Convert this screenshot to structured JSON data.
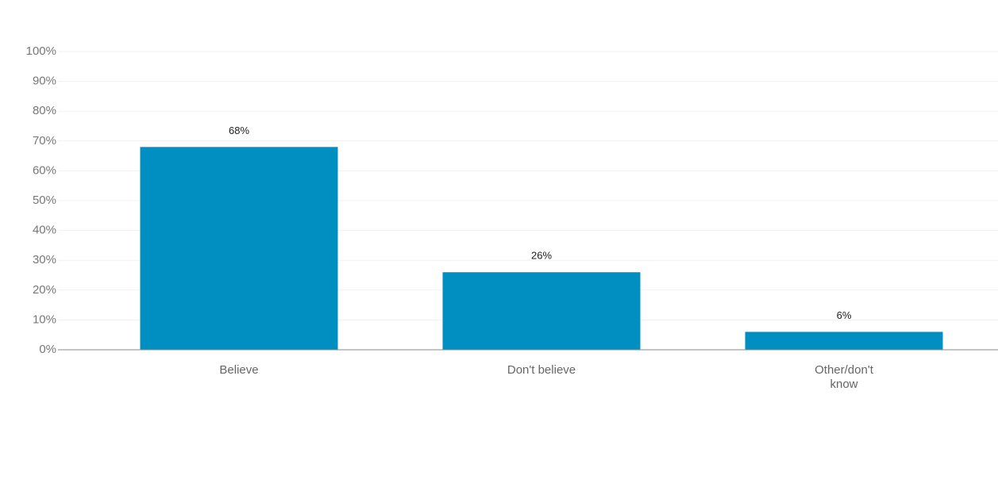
{
  "chart_data": {
    "type": "bar",
    "categories": [
      "Believe",
      "Don't believe",
      "Other/don't know"
    ],
    "values": [
      68,
      26,
      6
    ],
    "value_labels": [
      "68%",
      "26%",
      "6%"
    ],
    "color": "#008fc0",
    "ylim": [
      0,
      100
    ],
    "yticks": [
      {
        "value": 0,
        "label": "0%"
      },
      {
        "value": 10,
        "label": "10%"
      },
      {
        "value": 20,
        "label": "20%"
      },
      {
        "value": 30,
        "label": "30%"
      },
      {
        "value": 40,
        "label": "40%"
      },
      {
        "value": 50,
        "label": "50%"
      },
      {
        "value": 60,
        "label": "60%"
      },
      {
        "value": 70,
        "label": "70%"
      },
      {
        "value": 80,
        "label": "80%"
      },
      {
        "value": 90,
        "label": "90%"
      },
      {
        "value": 100,
        "label": "100%"
      }
    ],
    "grid": true
  }
}
